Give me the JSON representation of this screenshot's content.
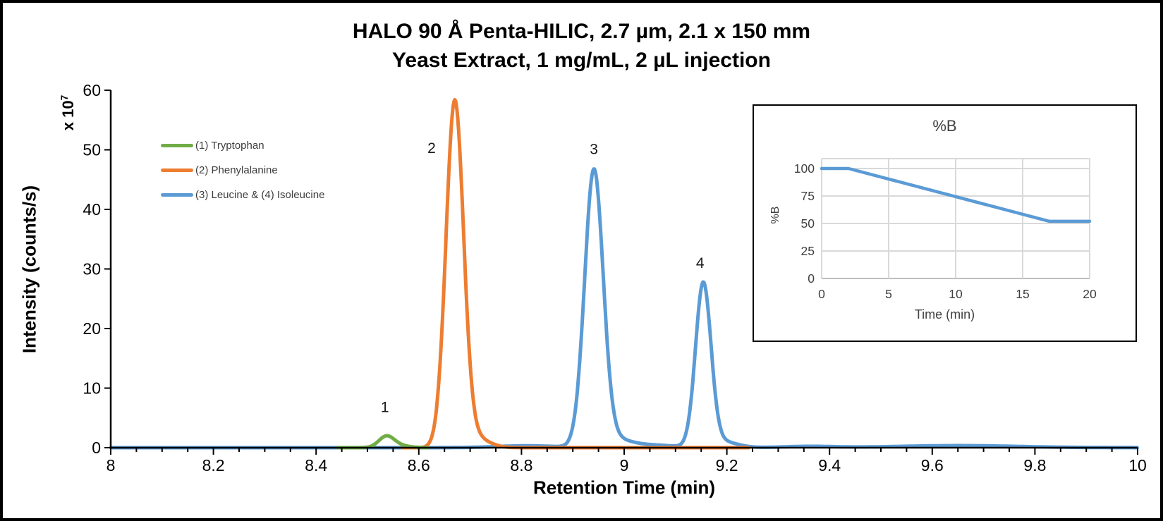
{
  "title": {
    "line1": "HALO 90 Å Penta-HILIC, 2.7 µm, 2.1 x 150 mm",
    "line2": "Yeast Extract, 1 mg/mL, 2 µL injection"
  },
  "colors": {
    "tryptophan_green": "#70AD47",
    "phenylalanine_orange": "#ED7D31",
    "leucine_isoleucine_blue": "#5B9BD5",
    "axis_black": "#000000",
    "inset_grid_gray": "#D9D9D9",
    "inset_text_gray": "#404040"
  },
  "chart_data": [
    {
      "id": "chromatogram",
      "type": "line",
      "title": "HALO 90 Å Penta-HILIC, 2.7 µm, 2.1 x 150 mm / Yeast Extract, 1 mg/mL, 2 µL injection",
      "xlabel": "Retention Time (min)",
      "ylabel": "Intensity (counts/s)",
      "y_scale": {
        "base": "x 10",
        "exp": "7"
      },
      "xlim": [
        8,
        10
      ],
      "ylim": [
        0,
        60
      ],
      "x_ticks": [
        "8",
        "8.2",
        "8.4",
        "8.6",
        "8.8",
        "9",
        "9.2",
        "9.4",
        "9.6",
        "9.8",
        "10"
      ],
      "x_tick_values": [
        8,
        8.2,
        8.4,
        8.6,
        8.8,
        9,
        9.2,
        9.4,
        9.6,
        9.8,
        10
      ],
      "x_minor_tick_step": 0.05,
      "y_ticks": [
        "0",
        "10",
        "20",
        "30",
        "40",
        "50",
        "60"
      ],
      "y_tick_values": [
        0,
        10,
        20,
        30,
        40,
        50,
        60
      ],
      "grid": false,
      "legend_position": "upper-left-inside",
      "series": [
        {
          "name": "(1) Tryptophan",
          "color": "#70AD47",
          "visible_range": [
            8.443,
            8.618
          ],
          "components": [
            [
              8.537,
              1.85,
              0.015
            ],
            [
              8.562,
              0.32,
              0.02
            ]
          ]
        },
        {
          "name": "(2) Phenylalanine",
          "color": "#ED7D31",
          "visible_range": [
            8.568,
            9.243
          ],
          "components": [
            [
              8.67,
              57.4,
              0.017
            ],
            [
              8.703,
              2.0,
              0.028
            ]
          ]
        },
        {
          "name": "(3) Leucine & (4) Isoleucine",
          "color": "#5B9BD5",
          "visible_range": [
            8.0,
            10.0
          ],
          "components": [
            [
              8.941,
              45.9,
              0.018
            ],
            [
              8.975,
              1.5,
              0.032
            ],
            [
              9.154,
              27.2,
              0.015
            ],
            [
              9.187,
              1.1,
              0.03
            ],
            [
              8.81,
              0.32,
              0.06
            ],
            [
              9.05,
              0.45,
              0.045
            ],
            [
              9.36,
              0.22,
              0.05
            ],
            [
              9.65,
              0.35,
              0.12
            ]
          ]
        }
      ],
      "draw_order": [
        2,
        1,
        0
      ],
      "peaks": [
        {
          "label": "1",
          "compound": "Tryptophan",
          "rt_min": 8.54,
          "height_e7": 1.9,
          "label_t": 8.534,
          "label_v": 6.8
        },
        {
          "label": "2",
          "compound": "Phenylalanine",
          "rt_min": 8.67,
          "height_e7": 57.4,
          "label_t": 8.625,
          "label_v": 50.3
        },
        {
          "label": "3",
          "compound": "Leucine",
          "rt_min": 8.94,
          "height_e7": 45.9,
          "label_t": 8.941,
          "label_v": 50.1
        },
        {
          "label": "4",
          "compound": "Isoleucine",
          "rt_min": 9.15,
          "height_e7": 27.2,
          "label_t": 9.148,
          "label_v": 31.0
        }
      ]
    },
    {
      "id": "gradient_inset",
      "type": "line",
      "title": "%B",
      "xlabel": "Time (min)",
      "ylabel": "%B",
      "xlim": [
        0,
        20
      ],
      "ylim": [
        0,
        100
      ],
      "x_ticks": [
        "0",
        "5",
        "10",
        "15",
        "20"
      ],
      "x_tick_values": [
        0,
        5,
        10,
        15,
        20
      ],
      "y_ticks": [
        "0",
        "25",
        "50",
        "75",
        "100"
      ],
      "y_tick_values": [
        0,
        25,
        50,
        75,
        100
      ],
      "grid": true,
      "line_color": "#5B9BD5",
      "points": [
        [
          0,
          100
        ],
        [
          2,
          100
        ],
        [
          17,
          52
        ],
        [
          20,
          52
        ]
      ]
    }
  ]
}
